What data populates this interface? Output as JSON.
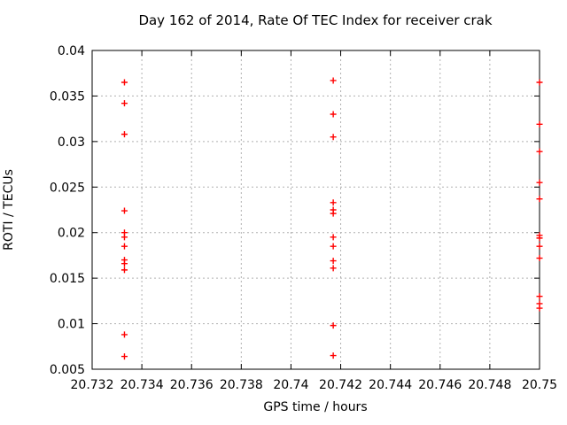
{
  "window": {
    "background": "#ffffff"
  },
  "chart_data": {
    "type": "scatter",
    "title": "Day 162 of 2014, Rate Of TEC Index for receiver crak",
    "xlabel": "GPS time / hours",
    "ylabel": "ROTI / TECUs",
    "xlim": [
      20.732,
      20.75
    ],
    "ylim": [
      0.005,
      0.04
    ],
    "x_ticks": [
      20.732,
      20.734,
      20.736,
      20.738,
      20.74,
      20.742,
      20.744,
      20.746,
      20.748,
      20.75
    ],
    "x_tick_labels": [
      "20.732",
      "20.734",
      "20.736",
      "20.738",
      "20.74",
      "20.742",
      "20.744",
      "20.746",
      "20.748",
      "20.75"
    ],
    "y_ticks": [
      0.005,
      0.01,
      0.015,
      0.02,
      0.025,
      0.03,
      0.035,
      0.04
    ],
    "y_tick_labels": [
      "0.005",
      "0.01",
      "0.015",
      "0.02",
      "0.025",
      "0.03",
      "0.035",
      "0.04"
    ],
    "grid": true,
    "grid_style": "dashed",
    "legend": "none",
    "marker": "plus",
    "colors": {
      "points": "#ff0000",
      "grid": "#b0b0b0",
      "axis": "#000000",
      "background": "#ffffff"
    },
    "series": [
      {
        "name": "ROTI",
        "color": "#ff0000",
        "points": [
          [
            20.7333,
            0.0365
          ],
          [
            20.7333,
            0.0342
          ],
          [
            20.7333,
            0.0308
          ],
          [
            20.7333,
            0.0224
          ],
          [
            20.7333,
            0.02
          ],
          [
            20.7333,
            0.0195
          ],
          [
            20.7333,
            0.0185
          ],
          [
            20.7333,
            0.017
          ],
          [
            20.7333,
            0.0166
          ],
          [
            20.7333,
            0.0159
          ],
          [
            20.7333,
            0.0088
          ],
          [
            20.7333,
            0.0064
          ],
          [
            20.7417,
            0.0367
          ],
          [
            20.7417,
            0.033
          ],
          [
            20.7417,
            0.0305
          ],
          [
            20.7417,
            0.0233
          ],
          [
            20.7417,
            0.0225
          ],
          [
            20.7417,
            0.0221
          ],
          [
            20.7417,
            0.0195
          ],
          [
            20.7417,
            0.0185
          ],
          [
            20.7417,
            0.0169
          ],
          [
            20.7417,
            0.0161
          ],
          [
            20.7417,
            0.0098
          ],
          [
            20.7417,
            0.0065
          ],
          [
            20.75,
            0.0365
          ],
          [
            20.75,
            0.0319
          ],
          [
            20.75,
            0.0289
          ],
          [
            20.75,
            0.0255
          ],
          [
            20.75,
            0.0237
          ],
          [
            20.75,
            0.0197
          ],
          [
            20.75,
            0.0194
          ],
          [
            20.75,
            0.0185
          ],
          [
            20.75,
            0.0172
          ],
          [
            20.75,
            0.013
          ],
          [
            20.75,
            0.0122
          ],
          [
            20.75,
            0.0117
          ]
        ]
      }
    ]
  }
}
